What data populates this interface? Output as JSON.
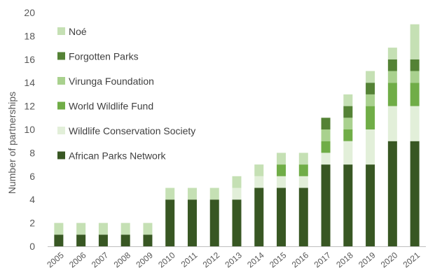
{
  "chart_data": {
    "type": "bar",
    "stacked": true,
    "categories": [
      "2005",
      "2006",
      "2007",
      "2008",
      "2009",
      "2010",
      "2011",
      "2012",
      "2013",
      "2014",
      "2015",
      "2016",
      "2017",
      "2018",
      "2019",
      "2020",
      "2021"
    ],
    "series": [
      {
        "name": "African Parks Network",
        "color": "#385723",
        "values": [
          1,
          1,
          1,
          1,
          1,
          4,
          4,
          4,
          4,
          5,
          5,
          5,
          7,
          7,
          7,
          9,
          9
        ]
      },
      {
        "name": "Wildlife Conservation Society",
        "color": "#E2EFD9",
        "values": [
          0,
          0,
          0,
          0,
          0,
          0,
          0,
          0,
          1,
          1,
          1,
          1,
          1,
          2,
          3,
          3,
          3
        ]
      },
      {
        "name": "World Wildlife Fund",
        "color": "#70AD47",
        "values": [
          0,
          0,
          0,
          0,
          0,
          0,
          0,
          0,
          0,
          0,
          1,
          1,
          1,
          1,
          2,
          2,
          2
        ]
      },
      {
        "name": "Virunga Foundation",
        "color": "#A9D18E",
        "values": [
          0,
          0,
          0,
          0,
          0,
          0,
          0,
          0,
          0,
          0,
          0,
          0,
          1,
          1,
          1,
          1,
          1
        ]
      },
      {
        "name": "Forgotten Parks",
        "color": "#548235",
        "values": [
          0,
          0,
          0,
          0,
          0,
          0,
          0,
          0,
          0,
          0,
          0,
          0,
          1,
          1,
          1,
          1,
          1
        ]
      },
      {
        "name": "Noé",
        "color": "#C5E0B4",
        "values": [
          1,
          1,
          1,
          1,
          1,
          1,
          1,
          1,
          1,
          1,
          1,
          1,
          0,
          1,
          1,
          1,
          3
        ]
      }
    ],
    "ylabel": "Number of partnerships",
    "xlabel": "",
    "ylim": [
      0,
      20
    ],
    "yticks": [
      0,
      2,
      4,
      6,
      8,
      10,
      12,
      14,
      16,
      18,
      20
    ],
    "grid": false,
    "legend_position": "top-left"
  }
}
